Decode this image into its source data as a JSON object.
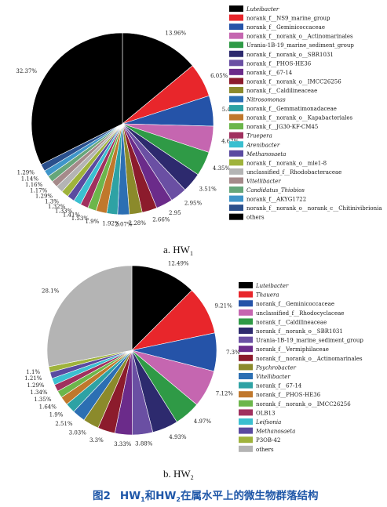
{
  "caption": {
    "figure_no": "图2",
    "text_before": "HW",
    "sub1": "1",
    "text_mid": "和HW",
    "sub2": "2",
    "text_after": "在属水平上的微生物群落结构"
  },
  "chart_data": [
    {
      "type": "pie",
      "panel_label": "a. HW",
      "panel_sub": "1",
      "colors_note": "slice colors listed per category",
      "categories": [
        "Luteibacter",
        "norank_f__NS9_marine_group",
        "norank_f__Geminicoccaceae",
        "norank_f__norank_o__Actinomarinales",
        "Urania-1B-19_marine_sediment_group",
        "norank_f__norank_o__SBR1031",
        "norank_f__PHOS-HE36",
        "norank_f__67-14",
        "norank_f__norank_o__IMCC26256",
        "norank_f__Caldilineaceae",
        "Nitrosomonas",
        "norank_f__Gemmatimonadaceae",
        "norank_f__norank_o__Kapabacteriales",
        "norank_f__JG30-KF-CM45",
        "Truepera",
        "Arenibacter",
        "Methanosaeta",
        "norank_f__norank_o__mle1-8",
        "unclassified_f__Rhodobacteraceae",
        "Vitellibacter",
        "Candidatus_Thiobios",
        "norank_f__AKYG1722",
        "norank_f__norank_o__norank_c__Chitinivibrionia",
        "others"
      ],
      "italic": [
        true,
        false,
        false,
        false,
        false,
        false,
        false,
        false,
        false,
        false,
        true,
        false,
        false,
        false,
        true,
        true,
        true,
        false,
        false,
        true,
        true,
        false,
        false,
        false
      ],
      "colors": [
        "#000000",
        "#e8262b",
        "#2553a8",
        "#c566b0",
        "#2f9a46",
        "#2d2a6e",
        "#6a4fa3",
        "#6b2b8a",
        "#8c1b2c",
        "#8b8a2b",
        "#2c6fb3",
        "#2ea2a4",
        "#c0782c",
        "#6cb64b",
        "#a0305e",
        "#3bbfd0",
        "#5a4aa0",
        "#9fb33c",
        "#b4b4b4",
        "#a58a8a",
        "#66a67a",
        "#3f95c9",
        "#2a4f8c",
        "#000000"
      ],
      "values": [
        13.96,
        6.05,
        5.4,
        4.67,
        4.35,
        3.51,
        2.95,
        2.95,
        2.66,
        2.28,
        2.07,
        1.92,
        1.9,
        1.53,
        1.41,
        1.33,
        1.32,
        1.3,
        1.29,
        1.17,
        1.16,
        1.14,
        1.29,
        32.37
      ],
      "labels": [
        "13.96%",
        "6.05%",
        "5.4",
        "4.67%",
        "4.35%",
        "3.51%",
        "2.95%",
        "2.95",
        "2.66%",
        "2.28%",
        "2.07%",
        "1.92%",
        "1.9%",
        "1.53%",
        "1.41%",
        "1.33%",
        "1.32%",
        "1.3%",
        "1.29%",
        "1.17%",
        "1.16%",
        "1.14%",
        "1.29%",
        "32.37%"
      ]
    },
    {
      "type": "pie",
      "panel_label": "b. HW",
      "panel_sub": "2",
      "categories": [
        "Luteibacter",
        "Thauera",
        "norank_f__Geminicoccaceae",
        "unclassified_f__Rhodocyclaceae",
        "norank_f__Caldilineaceae",
        "norank_f__norank_o__SBR1031",
        "Urania-1B-19_marine_sediment_group",
        "norank_f__Vermiphilaceae",
        "norank_f__norank_o__Actinomarinales",
        "Psychrobacter",
        "Vitellibacter",
        "norank_f__67-14",
        "norank_f__PHOS-HE36",
        "norank_f__norank_o__IMCC26256",
        "OLB13",
        "Leifsonia",
        "Methanosaeta",
        "P3OB-42",
        "others"
      ],
      "italic": [
        true,
        true,
        false,
        false,
        false,
        false,
        false,
        false,
        false,
        true,
        true,
        false,
        false,
        false,
        false,
        true,
        true,
        false,
        false
      ],
      "colors": [
        "#000000",
        "#e8262b",
        "#2553a8",
        "#c566b0",
        "#2f9a46",
        "#2d2a6e",
        "#6a4fa3",
        "#6b2b8a",
        "#8c1b2c",
        "#8b8a2b",
        "#2c6fb3",
        "#2ea2a4",
        "#c0782c",
        "#6cb64b",
        "#a0305e",
        "#3bbfd0",
        "#5a4aa0",
        "#9fb33c",
        "#b4b4b4"
      ],
      "values": [
        12.49,
        9.21,
        7.3,
        7.12,
        4.97,
        4.93,
        3.88,
        3.33,
        3.3,
        3.03,
        2.51,
        1.9,
        1.64,
        1.35,
        1.34,
        1.29,
        1.21,
        1.1,
        28.1
      ],
      "labels": [
        "12.49%",
        "9.21%",
        "7.3%",
        "7.12%",
        "4.97%",
        "4.93%",
        "3.88%",
        "3.33%",
        "3.3%",
        "3.03%",
        "2.51%",
        "1.9%",
        "1.64%",
        "1.35%",
        "1.34%",
        "1.29%",
        "1.21%",
        "1.1%",
        "28.1%"
      ]
    }
  ]
}
